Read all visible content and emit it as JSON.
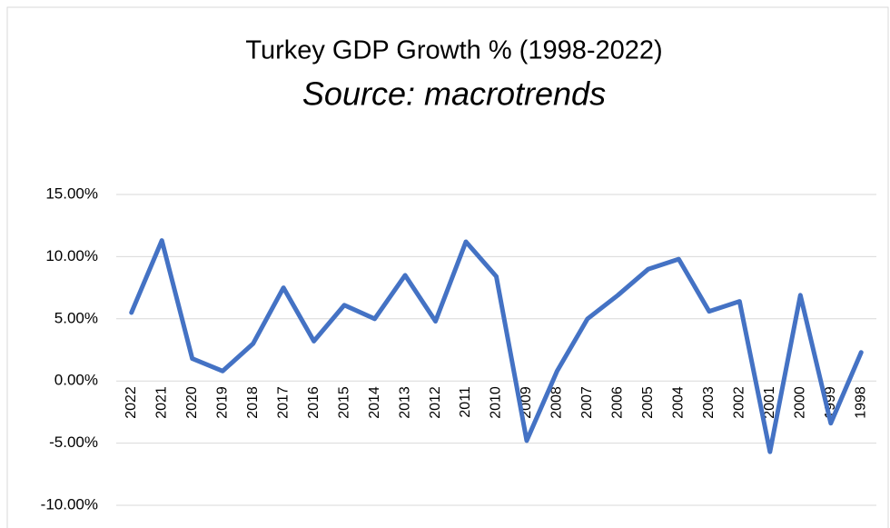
{
  "chart_data": {
    "type": "line",
    "title": "Turkey GDP Growth %  (1998-2022)",
    "subtitle": "Source: macrotrends",
    "categories": [
      "2022",
      "2021",
      "2020",
      "2019",
      "2018",
      "2017",
      "2016",
      "2015",
      "2014",
      "2013",
      "2012",
      "2011",
      "2010",
      "2009",
      "2008",
      "2007",
      "2006",
      "2005",
      "2004",
      "2003",
      "2002",
      "2001",
      "2000",
      "1999",
      "1998"
    ],
    "values": [
      5.5,
      11.3,
      1.8,
      0.8,
      3.0,
      7.5,
      3.2,
      6.1,
      5.0,
      8.5,
      4.8,
      11.2,
      8.4,
      -4.8,
      0.8,
      5.0,
      6.9,
      9.0,
      9.8,
      5.6,
      6.4,
      -5.7,
      6.9,
      -3.4,
      2.3
    ],
    "color": "#4472c4",
    "ylim": [
      -10,
      15
    ],
    "yticks": [
      {
        "value": -10,
        "label": "-10.00%"
      },
      {
        "value": -5,
        "label": "-5.00%"
      },
      {
        "value": 0,
        "label": "0.00%"
      },
      {
        "value": 5,
        "label": "5.00%"
      },
      {
        "value": 10,
        "label": "10.00%"
      },
      {
        "value": 15,
        "label": "15.00%"
      }
    ],
    "grid": true
  }
}
